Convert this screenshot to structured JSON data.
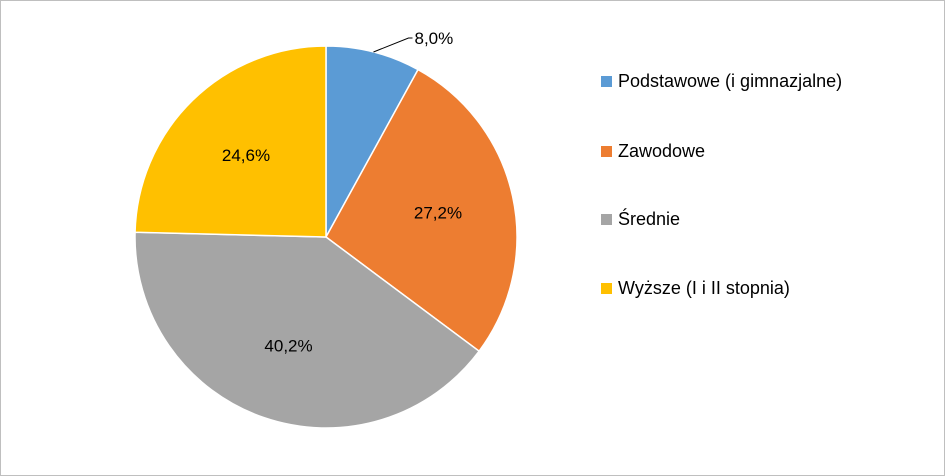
{
  "chart_data": {
    "type": "pie",
    "title": "",
    "categories": [
      "Podstawowe (i gimnazjalne)",
      "Zawodowe",
      "Średnie",
      "Wyższe (I i II stopnia)"
    ],
    "values": [
      8.0,
      27.2,
      40.2,
      24.6
    ],
    "value_labels": [
      "8,0%",
      "27,2%",
      "40,2%",
      "24,6%"
    ],
    "colors": [
      "#5b9bd5",
      "#ed7d31",
      "#a5a5a5",
      "#ffc000"
    ],
    "start_angle": "12 o'clock",
    "direction": "clockwise",
    "legend": "right",
    "legend_entries": [
      {
        "label": "Podstawowe (i gimnazjalne)",
        "color": "#5b9bd5"
      },
      {
        "label": "Zawodowe",
        "color": "#ed7d31"
      },
      {
        "label": "Średnie",
        "color": "#a5a5a5"
      },
      {
        "label": "Wyższe (I i II stopnia)",
        "color": "#ffc000"
      }
    ]
  }
}
